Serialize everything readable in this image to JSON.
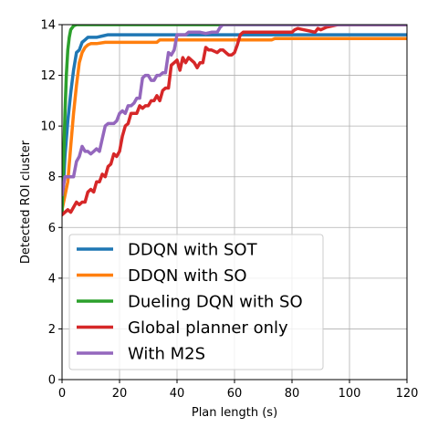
{
  "chart_data": {
    "type": "line",
    "title": "",
    "xlabel": "Plan length (s)",
    "ylabel": "Detected ROI cluster",
    "xlim": [
      0,
      120
    ],
    "ylim": [
      0,
      14
    ],
    "xticks": [
      0,
      20,
      40,
      60,
      80,
      100,
      120
    ],
    "yticks": [
      0,
      2,
      4,
      6,
      8,
      10,
      12,
      14
    ],
    "grid": true,
    "legend_position": "lower-left",
    "series": [
      {
        "name": "DDQN with SOT",
        "color": "#1f77b4",
        "x": [
          0,
          1,
          2,
          3,
          4,
          5,
          6,
          7,
          8,
          9,
          10,
          12,
          14,
          16,
          18,
          20,
          30,
          40,
          60,
          80,
          100,
          120
        ],
        "y": [
          6.6,
          8.8,
          10.2,
          11.3,
          12.2,
          12.9,
          13.0,
          13.3,
          13.4,
          13.5,
          13.5,
          13.5,
          13.55,
          13.6,
          13.6,
          13.6,
          13.6,
          13.6,
          13.6,
          13.6,
          13.6,
          13.6
        ]
      },
      {
        "name": "DDQN with SO",
        "color": "#ff7f0e",
        "x": [
          0,
          2,
          3,
          4,
          5,
          6,
          7,
          8,
          9,
          10,
          12,
          15,
          20,
          30,
          33,
          34,
          40,
          50,
          60,
          70,
          73,
          74,
          80,
          90,
          100,
          110,
          120
        ],
        "y": [
          6.7,
          7.8,
          9.2,
          10.5,
          11.6,
          12.5,
          12.9,
          13.1,
          13.2,
          13.25,
          13.25,
          13.3,
          13.3,
          13.3,
          13.3,
          13.4,
          13.4,
          13.4,
          13.4,
          13.4,
          13.4,
          13.45,
          13.45,
          13.45,
          13.45,
          13.45,
          13.45
        ]
      },
      {
        "name": "Dueling DQN with SO",
        "color": "#2ca02c",
        "x": [
          0,
          0.5,
          1,
          1.5,
          2,
          2.5,
          3,
          4,
          5,
          10,
          20,
          40,
          60,
          80,
          100,
          120
        ],
        "y": [
          6.6,
          8.5,
          10.5,
          12.0,
          13.0,
          13.5,
          13.8,
          13.95,
          14.0,
          14.0,
          14.0,
          14.0,
          14.0,
          14.0,
          14.0,
          14.0
        ]
      },
      {
        "name": "Global planner only",
        "color": "#d62728",
        "x": [
          0,
          2,
          3,
          4,
          5,
          6,
          7,
          8,
          9,
          10,
          11,
          12,
          13,
          14,
          15,
          16,
          17,
          18,
          19,
          20,
          21,
          22,
          23,
          24,
          25,
          26,
          27,
          28,
          29,
          30,
          31,
          32,
          33,
          34,
          35,
          36,
          37,
          38,
          39,
          40,
          41,
          42,
          43,
          44,
          45,
          46,
          47,
          48,
          49,
          50,
          51,
          52,
          53,
          54,
          55,
          56,
          57,
          58,
          59,
          60,
          61,
          62,
          63,
          64,
          65,
          66,
          70,
          75,
          80,
          81,
          82,
          84,
          86,
          88,
          89,
          90,
          92,
          94,
          96,
          100,
          110,
          120
        ],
        "y": [
          6.5,
          6.7,
          6.6,
          6.8,
          7.0,
          6.9,
          7.0,
          7.0,
          7.4,
          7.5,
          7.4,
          7.8,
          7.8,
          8.1,
          8.0,
          8.4,
          8.5,
          8.9,
          8.8,
          9.0,
          9.6,
          10.0,
          10.1,
          10.5,
          10.5,
          10.5,
          10.8,
          10.7,
          10.8,
          10.8,
          11.0,
          11.0,
          11.2,
          11.0,
          11.4,
          11.5,
          11.5,
          12.4,
          12.5,
          12.6,
          12.2,
          12.7,
          12.5,
          12.7,
          12.6,
          12.5,
          12.3,
          12.5,
          12.5,
          13.1,
          13.0,
          13.0,
          12.95,
          12.9,
          13.0,
          13.0,
          12.9,
          12.8,
          12.8,
          12.9,
          13.2,
          13.6,
          13.7,
          13.7,
          13.7,
          13.7,
          13.7,
          13.7,
          13.7,
          13.8,
          13.85,
          13.8,
          13.75,
          13.7,
          13.85,
          13.8,
          13.9,
          13.95,
          14.0,
          14.0,
          14.0,
          14.0
        ]
      },
      {
        "name": "With M2S",
        "color": "#9467bd",
        "x": [
          0,
          1,
          2,
          3,
          4,
          5,
          6,
          7,
          8,
          9,
          10,
          11,
          12,
          13,
          14,
          15,
          16,
          17,
          18,
          19,
          20,
          21,
          22,
          23,
          24,
          25,
          26,
          27,
          28,
          29,
          30,
          31,
          32,
          33,
          34,
          35,
          36,
          37,
          38,
          39,
          40,
          41,
          42,
          43,
          44,
          46,
          48,
          50,
          52,
          54,
          55,
          56,
          58,
          60,
          70,
          80,
          90,
          100,
          110,
          120
        ],
        "y": [
          7.3,
          8.0,
          8.0,
          8.0,
          8.0,
          8.6,
          8.8,
          9.2,
          9.0,
          9.0,
          8.9,
          9.0,
          9.1,
          9.0,
          9.5,
          10.0,
          10.1,
          10.1,
          10.1,
          10.2,
          10.5,
          10.6,
          10.5,
          10.8,
          10.8,
          10.9,
          11.1,
          11.1,
          11.9,
          12.0,
          12.0,
          11.8,
          11.8,
          12.0,
          12.0,
          12.1,
          12.1,
          12.9,
          12.8,
          13.0,
          13.6,
          13.6,
          13.6,
          13.6,
          13.7,
          13.7,
          13.7,
          13.65,
          13.7,
          13.7,
          13.9,
          14.0,
          14.0,
          14.0,
          14.0,
          14.0,
          14.0,
          14.0,
          14.0,
          14.0
        ]
      }
    ]
  }
}
